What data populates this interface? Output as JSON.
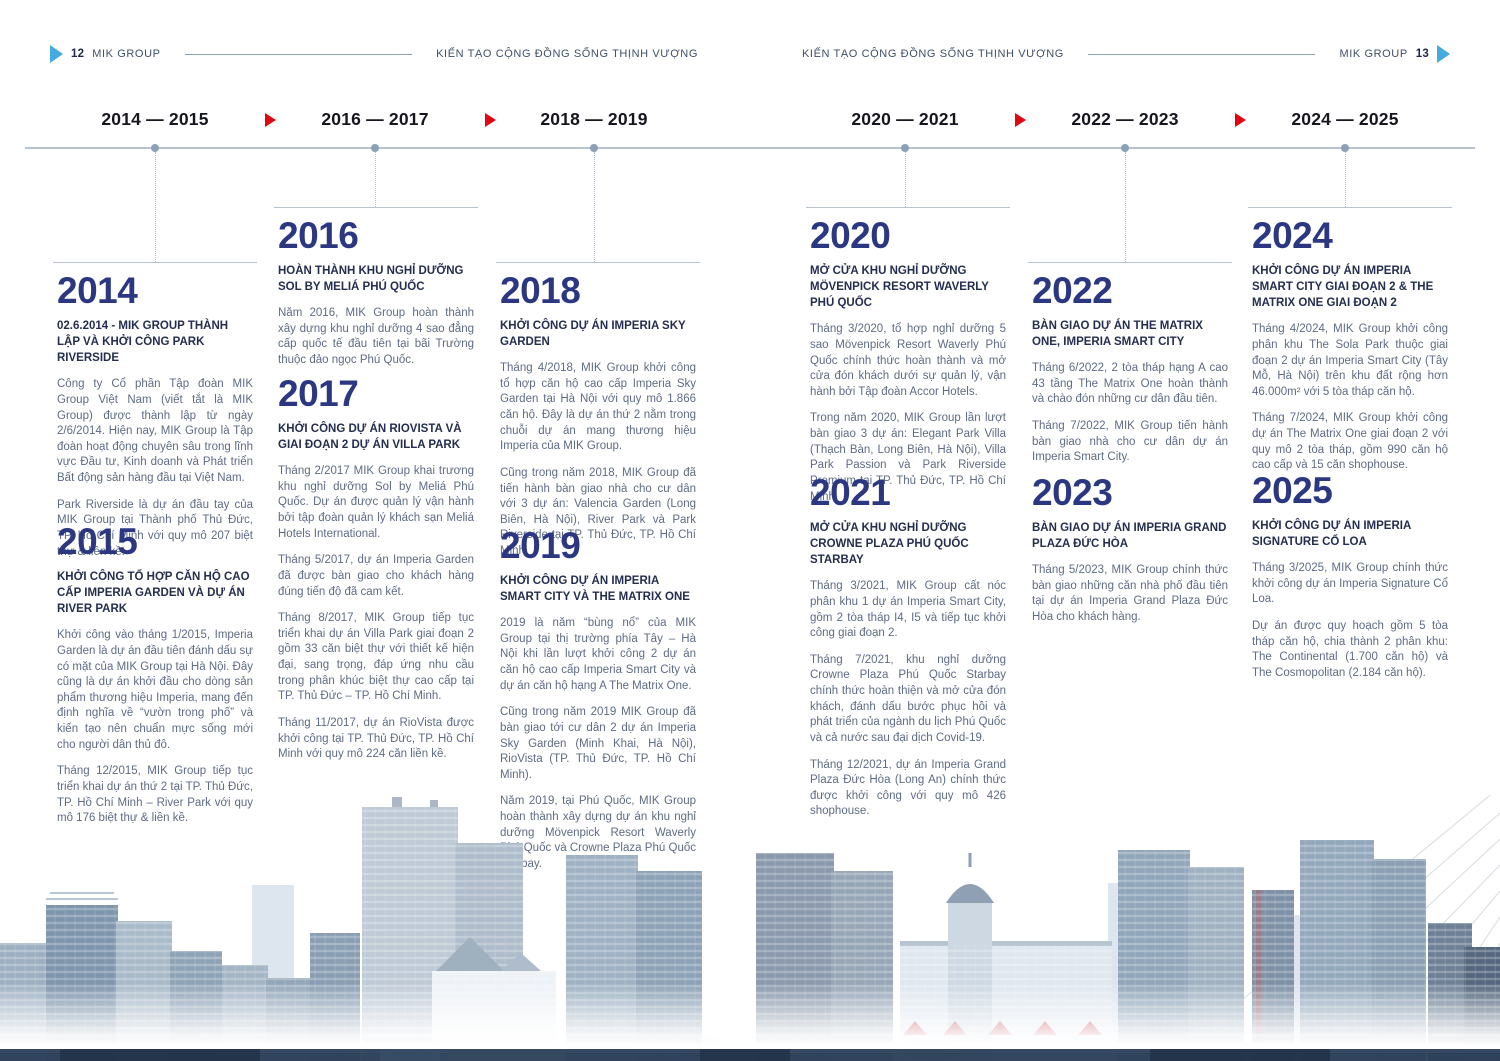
{
  "page_left": {
    "number": "12",
    "brand": "MIK GROUP",
    "tagline": "KIẾN TẠO CỘNG ĐỒNG SỐNG THỊNH VƯỢNG"
  },
  "page_right": {
    "number": "13",
    "brand": "MIK GROUP",
    "tagline": "KIẾN TẠO CỘNG ĐỒNG SỐNG THỊNH VƯỢNG"
  },
  "timeline": {
    "ranges": [
      "2014 — 2015",
      "2016 — 2017",
      "2018 — 2019",
      "2020 — 2021",
      "2022 — 2023",
      "2024 — 2025"
    ]
  },
  "columns": [
    {
      "sections": [
        {
          "year": "2014",
          "title": "02.6.2014 - MIK GROUP THÀNH LẬP VÀ KHỞI CÔNG PARK RIVERSIDE",
          "paragraphs": [
            "Công ty Cổ phần Tập đoàn MIK Group Việt Nam (viết tắt là MIK Group) được thành lập từ ngày 2/6/2014. Hiện nay, MIK Group là Tập đoàn hoạt động chuyên sâu trong lĩnh vực Đầu tư, Kinh doanh và Phát triển Bất động sản hàng đầu tại Việt Nam.",
            "Park Riverside là dự án đầu tay của MIK Group tại Thành phố Thủ Đức, TP. Hồ Chí Minh với quy mô 207 biệt thự & liền kề."
          ]
        },
        {
          "year": "2015",
          "title": "KHỞI CÔNG TỔ HỢP CĂN HỘ CAO CẤP IMPERIA GARDEN VÀ DỰ ÁN RIVER PARK",
          "paragraphs": [
            "Khởi công vào tháng 1/2015, Imperia Garden là dự án đầu tiên đánh dấu sự có mặt của MIK Group tại Hà Nội. Đây cũng là dự án khởi đầu cho dòng sản phẩm thương hiệu Imperia, mang đến định nghĩa về “vườn trong phố” và kiến tạo nên chuẩn mực sống mới cho người dân thủ đô.",
            "Tháng 12/2015, MIK Group tiếp tục triển khai dự án thứ 2 tại TP. Thủ Đức, TP. Hồ Chí Minh – River Park với quy mô 176 biệt thự & liền kề."
          ]
        }
      ]
    },
    {
      "sections": [
        {
          "year": "2016",
          "title": "HOÀN THÀNH KHU NGHỈ DƯỠNG SOL BY MELIÁ PHÚ QUỐC",
          "paragraphs": [
            "Năm 2016, MIK Group hoàn thành xây dựng khu nghỉ dưỡng 4 sao đẳng cấp quốc tế đầu tiên tại bãi Trường thuộc đảo ngọc Phú Quốc."
          ]
        },
        {
          "year": "2017",
          "title": "KHỞI CÔNG DỰ ÁN RIOVISTA VÀ GIAI ĐOẠN 2 DỰ ÁN VILLA PARK",
          "paragraphs": [
            "Tháng 2/2017 MIK Group khai trương khu nghỉ dưỡng Sol by Meliá Phú Quốc. Dự án được quản lý vận hành bởi tập đoàn quản lý khách sạn Meliá Hotels International.",
            "Tháng 5/2017, dự án Imperia Garden đã được bàn giao cho khách hàng đúng tiến độ đã cam kết.",
            "Tháng 8/2017, MIK Group tiếp tục triển khai dự án Villa Park giai đoạn 2 gồm 33 căn biệt thự với thiết kế hiện đại, sang trọng, đáp ứng nhu cầu trong phân khúc biệt thự cao cấp tại TP. Thủ Đức – TP. Hồ Chí Minh.",
            "Tháng 11/2017, dự án RioVista được khởi công tại TP. Thủ Đức, TP. Hồ Chí Minh với quy mô 224 căn liền kề."
          ]
        }
      ]
    },
    {
      "sections": [
        {
          "year": "2018",
          "title": "KHỞI CÔNG DỰ ÁN IMPERIA SKY GARDEN",
          "paragraphs": [
            "Tháng 4/2018, MIK Group khởi công tổ hợp căn hộ cao cấp Imperia Sky Garden tại Hà Nội với quy mô 1.866 căn hộ. Đây là dự án thứ 2 nằm trong chuỗi dự án mang thương hiệu Imperia của MIK Group.",
            "Cũng trong năm 2018, MIK Group đã tiến hành bàn giao nhà cho cư dân với 3 dự án: Valencia Garden (Long Biên, Hà Nội), River Park và Park Riverside tại TP. Thủ Đức, TP. Hồ Chí Minh."
          ]
        },
        {
          "year": "2019",
          "title": "KHỞI CÔNG DỰ ÁN IMPERIA SMART CITY VÀ THE MATRIX ONE",
          "paragraphs": [
            "2019 là năm “bùng nổ” của MIK Group tại thị trường phía Tây – Hà Nội khi lần lượt khởi công 2 dự án căn hộ cao cấp Imperia Smart City và dự án căn hộ hạng A The Matrix One.",
            "Cũng trong năm 2019 MIK Group đã bàn giao tới cư dân 2 dự án Imperia Sky Garden (Minh Khai, Hà Nội), RioVista (TP. Thủ Đức, TP. Hồ Chí Minh).",
            "Năm 2019, tại Phú Quốc, MIK Group hoàn thành xây dựng dự án khu nghỉ dưỡng Mövenpick Resort Waverly Phú Quốc và Crowne Plaza Phú Quốc Starbay."
          ]
        }
      ]
    },
    {
      "sections": [
        {
          "year": "2020",
          "title": "MỞ CỬA KHU NGHỈ DƯỠNG MÖVENPICK RESORT WAVERLY PHÚ QUỐC",
          "paragraphs": [
            "Tháng 3/2020, tổ hợp nghỉ dưỡng 5 sao Mövenpick Resort Waverly Phú Quốc chính thức hoàn thành và mở cửa đón khách dưới sự quản lý, vận hành bởi Tập đoàn Accor Hotels.",
            "Trong năm 2020, MIK Group lần lượt bàn giao 3 dự án: Elegant Park Villa (Thạch Bàn, Long Biên, Hà Nội), Villa Park Passion và Park Riverside Premium tại TP. Thủ Đức, TP. Hồ Chí Minh."
          ]
        },
        {
          "year": "2021",
          "title": "MỞ CỬA KHU NGHỈ DƯỠNG CROWNE PLAZA PHÚ QUỐC STARBAY",
          "paragraphs": [
            "Tháng 3/2021, MIK Group cất nóc phân khu 1 dự án Imperia Smart City, gồm 2 tòa tháp I4, I5 và tiếp tục khởi công giai đoạn 2.",
            "Tháng 7/2021, khu nghỉ dưỡng Crowne Plaza Phú Quốc Starbay chính thức hoàn thiện và mở cửa đón khách, đánh dấu bước phục hồi và phát triển của ngành du lịch Phú Quốc và cả nước sau đại dịch Covid-19.",
            "Tháng 12/2021, dự án Imperia Grand Plaza Đức Hòa (Long An) chính thức được khởi công với quy mô 426 shophouse."
          ]
        }
      ]
    },
    {
      "sections": [
        {
          "year": "2022",
          "title": "BÀN GIAO DỰ ÁN THE MATRIX ONE, IMPERIA SMART CITY",
          "paragraphs": [
            "Tháng 6/2022, 2 tòa tháp hạng A cao 43 tầng The Matrix One hoàn thành và chào đón những cư dân đầu tiên.",
            "Tháng 7/2022, MIK Group tiến hành bàn giao nhà cho cư dân dự án Imperia Smart City."
          ]
        },
        {
          "year": "2023",
          "title": "BÀN GIAO DỰ ÁN IMPERIA GRAND PLAZA ĐỨC HÒA",
          "paragraphs": [
            "Tháng 5/2023, MIK Group chính thức bàn giao những căn nhà phố đầu tiên tại dự án Imperia Grand Plaza Đức Hòa cho khách hàng."
          ]
        }
      ]
    },
    {
      "sections": [
        {
          "year": "2024",
          "title": "KHỞI CÔNG DỰ ÁN IMPERIA SMART CITY GIAI ĐOẠN 2 & THE MATRIX ONE GIAI ĐOẠN 2",
          "paragraphs": [
            "Tháng 4/2024, MIK Group khởi công phân khu The Sola Park thuộc giai đoạn 2 dự án Imperia Smart City (Tây Mỗ, Hà Nội) trên khu đất rộng hơn 46.000m² với 5 tòa tháp căn hộ.",
            "Tháng 7/2024, MIK Group khởi công dự án The Matrix One giai đoạn 2 với quy mô 2 tòa tháp, gồm 990 căn hộ cao cấp và 15 căn shophouse."
          ]
        },
        {
          "year": "2025",
          "title": "KHỞI CÔNG DỰ ÁN IMPERIA SIGNATURE CỔ LOA",
          "paragraphs": [
            "Tháng 3/2025, MIK Group chính thức khởi công dự án Imperia Signature Cổ Loa.",
            "Dự án được quy hoạch gồm 5 tòa tháp căn hộ, chia thành 2 phân khu: The Continental (1.700 căn hộ) và The Cosmopolitan (2.184 căn hộ)."
          ]
        }
      ]
    }
  ],
  "colors": {
    "year_navy": "#2c3782",
    "title_navy": "#242e4f",
    "body_text": "#5e6b85",
    "header_text": "#3e5068",
    "timeline_text": "#15161e",
    "red_arrow": "#e30613",
    "blue_arrow": "#45aadd",
    "line_gray": "#b9c3ce"
  }
}
